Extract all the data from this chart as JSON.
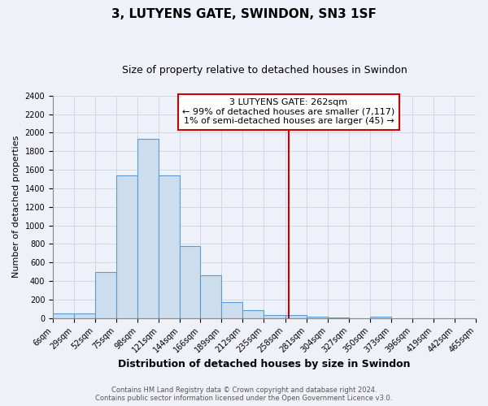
{
  "title": "3, LUTYENS GATE, SWINDON, SN3 1SF",
  "subtitle": "Size of property relative to detached houses in Swindon",
  "xlabel": "Distribution of detached houses by size in Swindon",
  "ylabel": "Number of detached properties",
  "bin_edges": [
    6,
    29,
    52,
    75,
    98,
    121,
    144,
    166,
    189,
    212,
    235,
    258,
    281,
    304,
    327,
    350,
    373,
    396,
    419,
    442,
    465
  ],
  "bar_heights": [
    50,
    50,
    500,
    1540,
    1930,
    1540,
    780,
    460,
    175,
    90,
    35,
    30,
    20,
    5,
    0,
    20,
    0,
    0,
    0,
    0
  ],
  "bar_color": "#ccdded",
  "bar_edge_color": "#5b9bd5",
  "grid_color": "#d0d8e8",
  "background_color": "#eef2f8",
  "property_line_x": 262,
  "property_line_color": "#cc0000",
  "annotation_text": "3 LUTYENS GATE: 262sqm\n← 99% of detached houses are smaller (7,117)\n1% of semi-detached houses are larger (45) →",
  "annotation_box_color": "#ffffff",
  "annotation_box_edge_color": "#cc0000",
  "ylim": [
    0,
    2400
  ],
  "yticks": [
    0,
    200,
    400,
    600,
    800,
    1000,
    1200,
    1400,
    1600,
    1800,
    2000,
    2200,
    2400
  ],
  "footer1": "Contains HM Land Registry data © Crown copyright and database right 2024.",
  "footer2": "Contains public sector information licensed under the Open Government Licence v3.0.",
  "title_fontsize": 11,
  "subtitle_fontsize": 9,
  "xlabel_fontsize": 9,
  "ylabel_fontsize": 8,
  "tick_fontsize": 7,
  "annotation_fontsize": 8,
  "footer_fontsize": 6
}
